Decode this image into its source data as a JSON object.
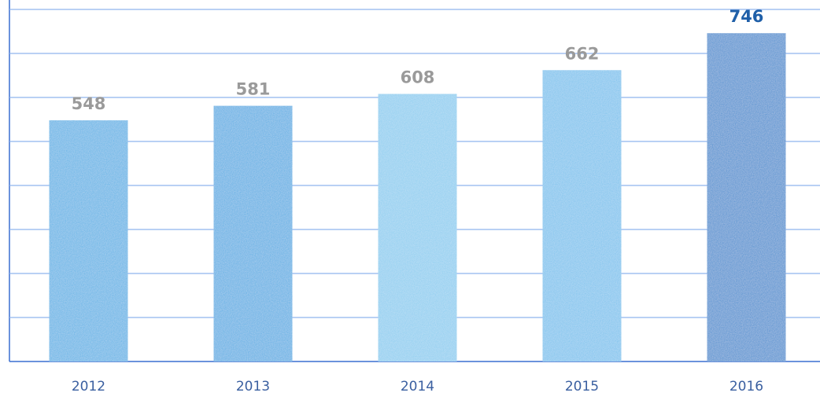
{
  "chart_data": {
    "type": "bar",
    "categories": [
      "2012",
      "2013",
      "2014",
      "2015",
      "2016"
    ],
    "values": [
      548,
      581,
      608,
      662,
      746
    ],
    "colors": [
      "#5fb3e6",
      "#5aaee4",
      "#8ccdf0",
      "#7cc3ee",
      "#4a8fd0"
    ],
    "label_colors": [
      "#9a9a9a",
      "#9a9a9a",
      "#9a9a9a",
      "#9a9a9a",
      "#1f5fa8"
    ],
    "ylim": [
      0,
      800
    ],
    "yticks": [
      0,
      100,
      200,
      300,
      400,
      500,
      600,
      700,
      800
    ],
    "grid": true
  }
}
